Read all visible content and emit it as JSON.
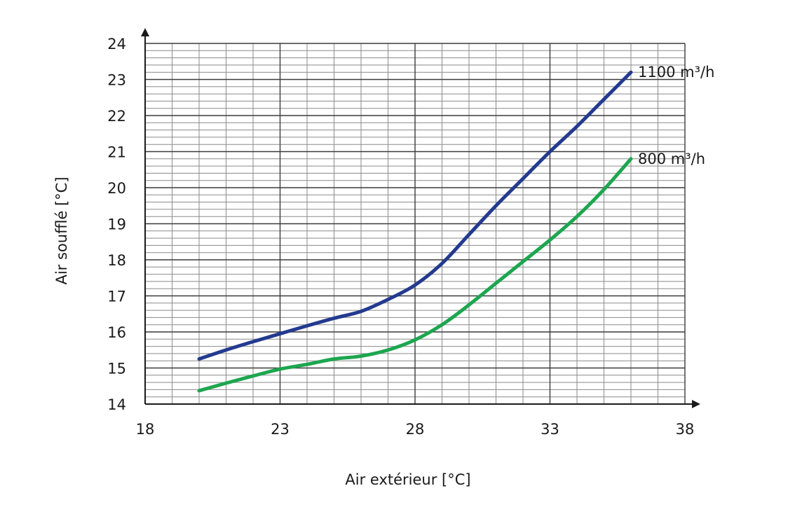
{
  "chart_data": {
    "type": "line",
    "title": "",
    "xlabel": "Air extérieur  [°C]",
    "ylabel": "Air soufflé [°C]",
    "xlim": [
      18,
      38
    ],
    "ylim": [
      14,
      24
    ],
    "x_ticks": [
      18,
      23,
      28,
      33,
      38
    ],
    "y_ticks": [
      14,
      15,
      16,
      17,
      18,
      19,
      20,
      21,
      22,
      23,
      24
    ],
    "grid": true,
    "series": [
      {
        "name": "1100 m³/h",
        "color": "#233a8f",
        "x": [
          20,
          21,
          22,
          23,
          24,
          25,
          26,
          27,
          28,
          29,
          30,
          31,
          32,
          33,
          34,
          35,
          36
        ],
        "y": [
          15.25,
          15.5,
          15.73,
          15.95,
          16.17,
          16.38,
          16.57,
          16.9,
          17.3,
          17.9,
          18.7,
          19.5,
          20.25,
          21.0,
          21.7,
          22.45,
          23.2
        ]
      },
      {
        "name": "800 m³/h",
        "color": "#1da64f",
        "x": [
          20,
          21,
          22,
          23,
          24,
          25,
          26,
          27,
          28,
          29,
          30,
          31,
          32,
          33,
          34,
          35,
          36
        ],
        "y": [
          14.37,
          14.58,
          14.78,
          14.97,
          15.1,
          15.25,
          15.33,
          15.5,
          15.78,
          16.2,
          16.75,
          17.35,
          17.95,
          18.55,
          19.2,
          19.95,
          20.8
        ]
      }
    ]
  }
}
